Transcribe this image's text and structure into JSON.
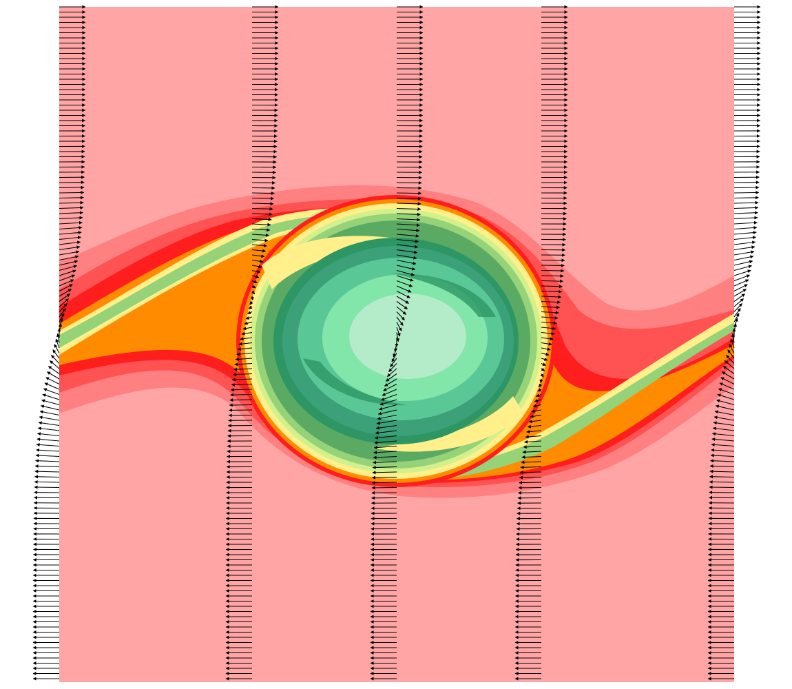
{
  "figure": {
    "kind": "Kelvin-Helmholtz vortex contour plot with velocity vector columns",
    "colors": {
      "background": "#ffa5a5",
      "bands": [
        "#ff8080",
        "#ff5252",
        "#ff1e1e",
        "#ff8c00",
        "#fff08c",
        "#d2f08c",
        "#96d278",
        "#5aaa64",
        "#2d9664",
        "#3ca078",
        "#5ac896",
        "#82e6aa",
        "#b4ebc8"
      ],
      "arrows": "#000000"
    },
    "vector_columns": 5,
    "vortex": {
      "rotation": "clockwise"
    }
  }
}
